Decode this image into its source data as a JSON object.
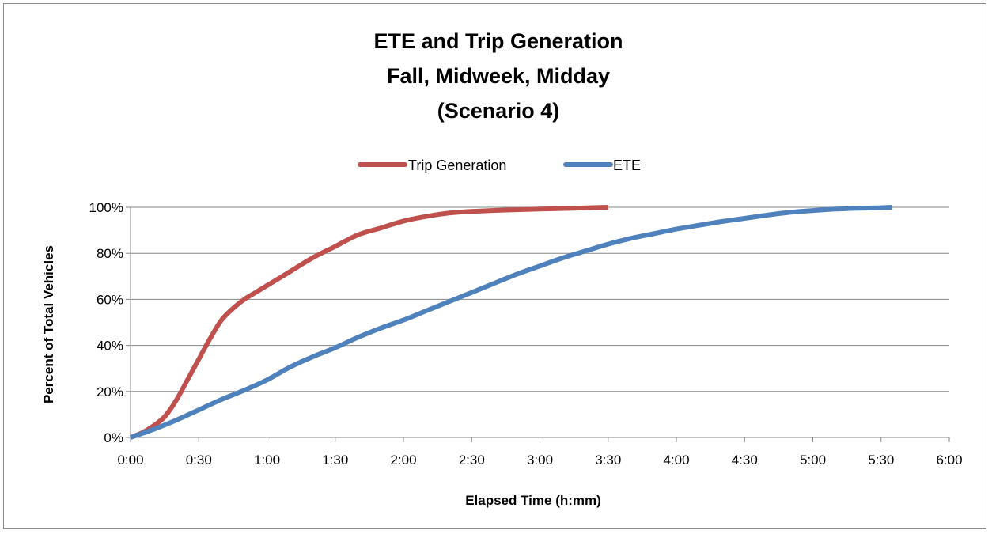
{
  "chart_data": {
    "type": "line",
    "title": [
      "ETE and Trip Generation",
      "Fall, Midweek, Midday",
      "(Scenario 4)"
    ],
    "xlabel": "Elapsed Time (h:mm)",
    "ylabel": "Percent of Total Vehicles",
    "x_unit": "minutes",
    "xlim": [
      0,
      360
    ],
    "ylim": [
      0,
      100
    ],
    "x_ticks": [
      0,
      30,
      60,
      90,
      120,
      150,
      180,
      210,
      240,
      270,
      300,
      330,
      360
    ],
    "x_tick_labels": [
      "0:00",
      "0:30",
      "1:00",
      "1:30",
      "2:00",
      "2:30",
      "3:00",
      "3:30",
      "4:00",
      "4:30",
      "5:00",
      "5:30",
      "6:00"
    ],
    "y_ticks": [
      0,
      20,
      40,
      60,
      80,
      100
    ],
    "y_tick_labels": [
      "0%",
      "20%",
      "40%",
      "60%",
      "80%",
      "100%"
    ],
    "grid": "horizontal",
    "legend_position": "top",
    "series": [
      {
        "name": "Trip Generation",
        "color": "#c0504d",
        "points": [
          [
            0,
            0
          ],
          [
            5,
            2
          ],
          [
            10,
            5
          ],
          [
            15,
            9
          ],
          [
            20,
            16
          ],
          [
            25,
            25
          ],
          [
            30,
            34
          ],
          [
            35,
            43
          ],
          [
            40,
            51
          ],
          [
            45,
            56
          ],
          [
            50,
            60
          ],
          [
            55,
            63
          ],
          [
            60,
            66
          ],
          [
            70,
            72
          ],
          [
            80,
            78
          ],
          [
            90,
            83
          ],
          [
            100,
            88
          ],
          [
            110,
            91
          ],
          [
            120,
            94
          ],
          [
            130,
            96
          ],
          [
            140,
            97.5
          ],
          [
            150,
            98.2
          ],
          [
            165,
            98.8
          ],
          [
            180,
            99.2
          ],
          [
            195,
            99.6
          ],
          [
            210,
            100
          ]
        ]
      },
      {
        "name": "ETE",
        "color": "#4f81bd",
        "points": [
          [
            0,
            0
          ],
          [
            10,
            3.5
          ],
          [
            20,
            7.5
          ],
          [
            30,
            12
          ],
          [
            40,
            16.5
          ],
          [
            50,
            20.5
          ],
          [
            60,
            25
          ],
          [
            70,
            30.5
          ],
          [
            80,
            35
          ],
          [
            90,
            39
          ],
          [
            100,
            43.5
          ],
          [
            110,
            47.5
          ],
          [
            120,
            51
          ],
          [
            130,
            55
          ],
          [
            140,
            59
          ],
          [
            150,
            63
          ],
          [
            160,
            67
          ],
          [
            170,
            71
          ],
          [
            180,
            74.5
          ],
          [
            190,
            78
          ],
          [
            200,
            81
          ],
          [
            210,
            84
          ],
          [
            220,
            86.5
          ],
          [
            230,
            88.5
          ],
          [
            240,
            90.5
          ],
          [
            250,
            92.2
          ],
          [
            260,
            93.8
          ],
          [
            270,
            95.2
          ],
          [
            280,
            96.6
          ],
          [
            290,
            97.8
          ],
          [
            300,
            98.6
          ],
          [
            310,
            99.2
          ],
          [
            320,
            99.6
          ],
          [
            330,
            99.8
          ],
          [
            335,
            100
          ]
        ]
      }
    ]
  }
}
